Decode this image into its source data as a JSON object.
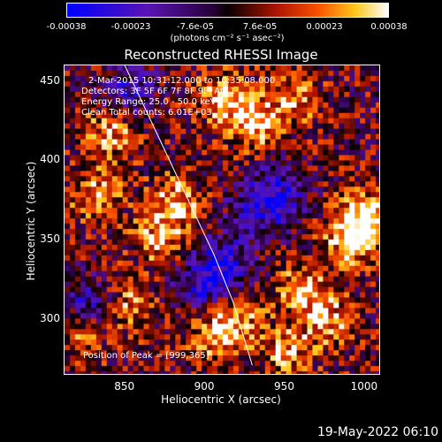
{
  "colorbar": {
    "ticks": [
      "-0.00038",
      "-0.00023",
      "-7.6e-05",
      "7.6e-05",
      "0.00023",
      "0.00038"
    ],
    "units": "(photons cm⁻² s⁻¹ asec⁻²)"
  },
  "chart_data": {
    "type": "heatmap",
    "title": "Reconstructed RHESSI Image",
    "xlabel": "Heliocentric X (arcsec)",
    "ylabel": "Heliocentric Y (arcsec)",
    "xlim": [
      812,
      1010
    ],
    "ylim": [
      264,
      460
    ],
    "x_ticks": [
      "850",
      "900",
      "950",
      "1000"
    ],
    "y_ticks": [
      "450",
      "400",
      "350",
      "300"
    ],
    "color_range": [
      -0.00038,
      0.00038
    ],
    "colormap": "red-temperature",
    "limb_curve": [
      [
        850,
        460
      ],
      [
        878,
        400
      ],
      [
        906,
        340
      ],
      [
        918,
        310
      ],
      [
        930,
        270
      ]
    ],
    "hot_spots": [
      {
        "x": 999,
        "y": 365,
        "intensity": 1.0
      },
      {
        "x": 990,
        "y": 350,
        "intensity": 0.8
      },
      {
        "x": 930,
        "y": 425,
        "intensity": 0.85
      },
      {
        "x": 910,
        "y": 440,
        "intensity": 0.75
      },
      {
        "x": 880,
        "y": 375,
        "intensity": 0.8
      },
      {
        "x": 870,
        "y": 350,
        "intensity": 0.7
      },
      {
        "x": 905,
        "y": 290,
        "intensity": 0.75
      },
      {
        "x": 920,
        "y": 300,
        "intensity": 0.6
      },
      {
        "x": 850,
        "y": 310,
        "intensity": 0.6
      },
      {
        "x": 830,
        "y": 380,
        "intensity": 0.7
      },
      {
        "x": 840,
        "y": 420,
        "intensity": 0.75
      },
      {
        "x": 960,
        "y": 320,
        "intensity": 0.7
      },
      {
        "x": 950,
        "y": 280,
        "intensity": 0.65
      },
      {
        "x": 975,
        "y": 300,
        "intensity": 0.7
      },
      {
        "x": 820,
        "y": 290,
        "intensity": 0.55
      },
      {
        "x": 955,
        "y": 440,
        "intensity": 0.6
      }
    ],
    "cold_spots": [
      {
        "x": 910,
        "y": 335,
        "intensity": 1.0
      },
      {
        "x": 945,
        "y": 380,
        "intensity": 0.9
      },
      {
        "x": 825,
        "y": 310,
        "intensity": 0.8
      },
      {
        "x": 850,
        "y": 445,
        "intensity": 0.8
      },
      {
        "x": 895,
        "y": 320,
        "intensity": 0.7
      },
      {
        "x": 930,
        "y": 370,
        "intensity": 0.6
      }
    ]
  },
  "info": {
    "line1": "2-Mar-2015 10:31:12.000 to 10:35:08.000",
    "line2": "Detectors: 3F 5F 6F 7F 8F 9F, Att 1",
    "line3": "Energy Range: 25.0 - 50.0 keV",
    "line4": "Clean     Total counts: 6.01E+03",
    "peak": "Position of Peak = [999,365]"
  },
  "footer": {
    "date": "19-May-2022 06:10"
  }
}
